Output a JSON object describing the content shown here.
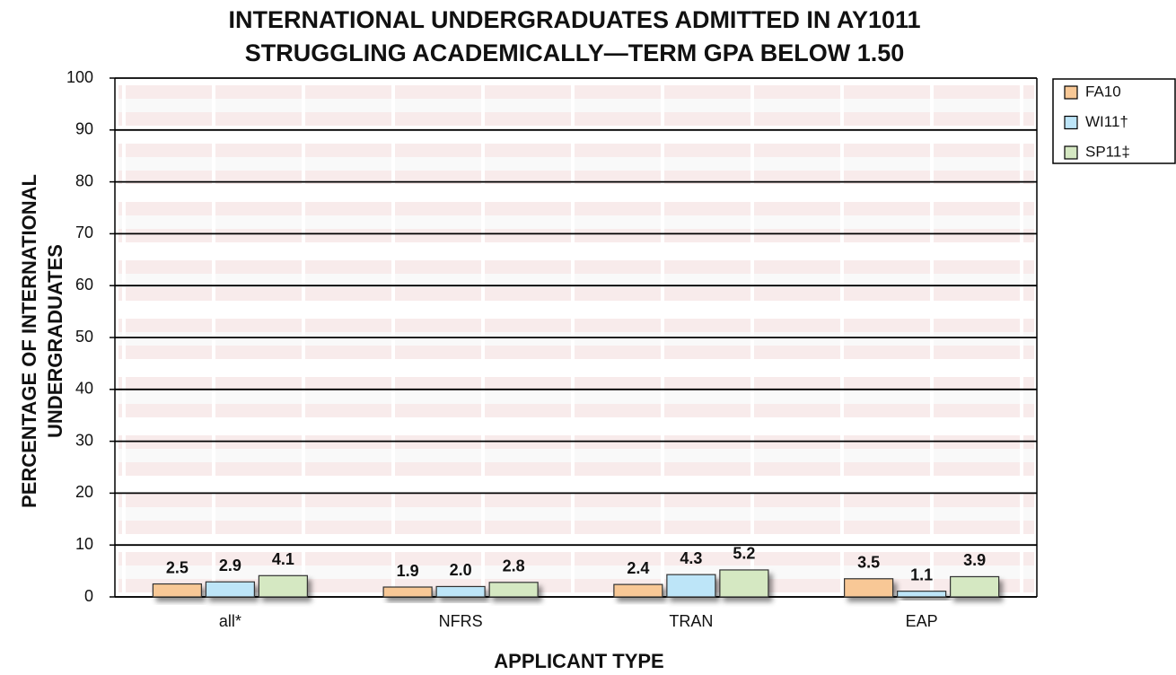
{
  "chart_data": {
    "type": "bar",
    "title": [
      "INTERNATIONAL UNDERGRADUATES ADMITTED IN AY1011",
      "STRUGGLING ACADEMICALLY—TERM GPA BELOW 1.50"
    ],
    "y_label": [
      "PERCENTAGE OF INTERNATIONAL",
      "UNDERGRADUATES"
    ],
    "x_label": "APPLICANT TYPE",
    "categories": [
      "all*",
      "NFRS",
      "TRAN",
      "EAP"
    ],
    "series": [
      {
        "name": "FA10",
        "color": "#f8c896",
        "values": [
          2.5,
          1.9,
          2.4,
          3.5
        ],
        "value_labels": [
          "2.5",
          "1.9",
          "2.4",
          "3.5"
        ]
      },
      {
        "name": "WI11†",
        "color": "#bde5f8",
        "values": [
          2.9,
          2.0,
          4.3,
          1.1
        ],
        "value_labels": [
          "2.9",
          "2.0",
          "4.3",
          "1.1"
        ]
      },
      {
        "name": "SP11‡",
        "color": "#d5e8c2",
        "values": [
          4.1,
          2.8,
          5.2,
          3.9
        ],
        "value_labels": [
          "4.1",
          "2.8",
          "5.2",
          "3.9"
        ]
      }
    ],
    "ylim": [
      0,
      100
    ],
    "yticks": [
      0,
      10,
      20,
      30,
      40,
      50,
      60,
      70,
      80,
      90,
      100
    ],
    "grid": true,
    "legend": "upper right"
  }
}
